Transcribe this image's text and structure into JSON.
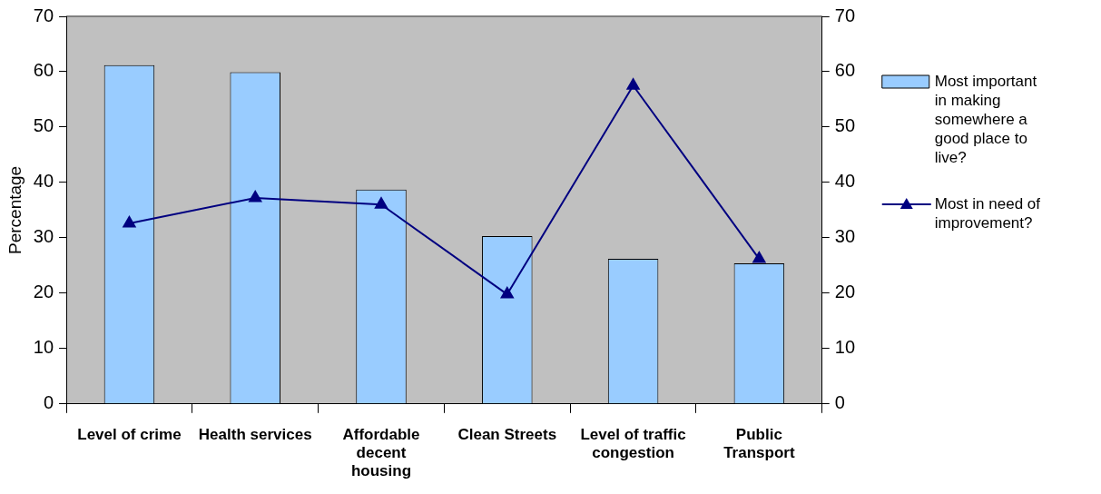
{
  "chart_data": {
    "type": "bar",
    "ylabel": "Percentage",
    "categories": [
      "Level of crime",
      "Health services",
      "Affordable decent housing",
      "Clean Streets",
      "Level of traffic congestion",
      "Public Transport"
    ],
    "series": [
      {
        "name": "Most important in making somewhere a good place to live?",
        "color": "#99ccff",
        "values": [
          61.2,
          59.9,
          38.7,
          30.3,
          26.2,
          25.4
        ]
      },
      {
        "name": "Most in need of improvement?",
        "type": "line",
        "color": "#000080",
        "values": [
          32.6,
          37.2,
          36.0,
          19.8,
          57.5,
          26.2
        ]
      }
    ],
    "ylim": [
      0,
      70
    ],
    "yticks": [
      0,
      10,
      20,
      30,
      40,
      50,
      60,
      70
    ],
    "y2lim": [
      0,
      70
    ],
    "y2ticks": [
      0,
      10,
      20,
      30,
      40,
      50,
      60,
      70
    ],
    "grid": false,
    "legend": "right",
    "marker": "triangle",
    "line_style": "solid"
  }
}
